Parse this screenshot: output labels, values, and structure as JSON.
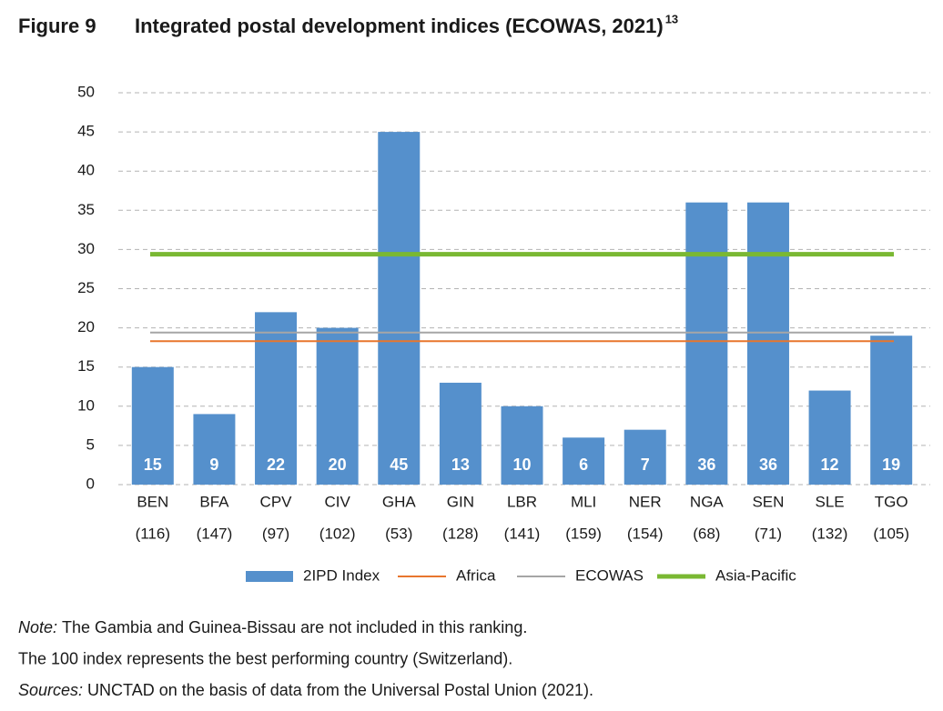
{
  "figure_label": "Figure 9",
  "chart_data": {
    "type": "bar",
    "title": "Integrated postal development indices (ECOWAS, 2021)",
    "title_superscript": "13",
    "categories": [
      [
        "BEN",
        "(116)"
      ],
      [
        "BFA",
        "(147)"
      ],
      [
        "CPV",
        "(97)"
      ],
      [
        "CIV",
        "(102)"
      ],
      [
        "GHA",
        "(53)"
      ],
      [
        "GIN",
        "(128)"
      ],
      [
        "LBR",
        "(141)"
      ],
      [
        "MLI",
        "(159)"
      ],
      [
        "NER",
        "(154)"
      ],
      [
        "NGA",
        "(68)"
      ],
      [
        "SEN",
        "(71)"
      ],
      [
        "SLE",
        "(132)"
      ],
      [
        "TGO",
        "(105)"
      ]
    ],
    "series": [
      {
        "name": "2IPD Index",
        "color": "#5590cc",
        "values": [
          15,
          9,
          22,
          20,
          45,
          13,
          10,
          6,
          7,
          36,
          36,
          12,
          19
        ]
      }
    ],
    "reference_lines": [
      {
        "name": "Africa",
        "color": "#e8762d",
        "value": 18.3,
        "width": 2
      },
      {
        "name": "ECOWAS",
        "color": "#a6a6a6",
        "value": 19.4,
        "width": 2
      },
      {
        "name": "Asia-Pacific",
        "color": "#7ab833",
        "value": 29.4,
        "width": 5
      }
    ],
    "ylim": [
      0,
      50
    ],
    "yticks": [
      0,
      5,
      10,
      15,
      20,
      25,
      30,
      35,
      40,
      45,
      50
    ],
    "grid": true
  },
  "notes": [
    {
      "label": "Note:",
      "text": "The Gambia and Guinea-Bissau are not included in this ranking."
    },
    {
      "text": "The 100 index represents the best performing country (Switzerland)."
    },
    {
      "label": "Sources:",
      "text": "UNCTAD on the basis of data from the Universal Postal Union (2021)."
    }
  ]
}
